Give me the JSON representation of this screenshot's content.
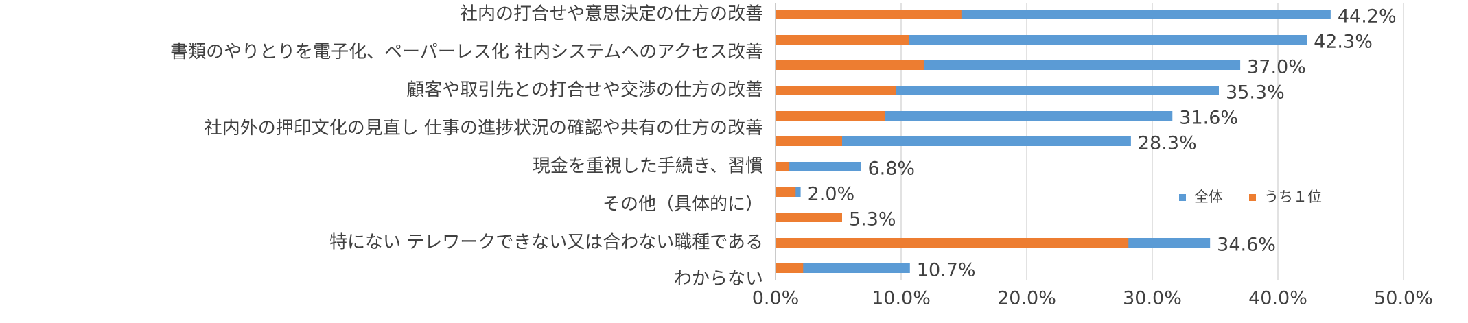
{
  "chart_data": {
    "type": "barh",
    "categories": [
      "社内の打合せや意思決定の仕方の改善",
      "書類のやりとりを電子化、ペーパーレス化 社内システムへのアクセス改善",
      null,
      "顧客や取引先との打合せや交渉の仕方の改善",
      "社内外の押印文化の見直し 仕事の進捗状況の確認や共有の仕方の改善",
      null,
      "現金を重視した手続き、習慣",
      "その他（具体的に）",
      null,
      "特にない テレワークできない又は合わない職種である",
      "わからない"
    ],
    "series": [
      {
        "name": "全体",
        "color": "#5b9bd5",
        "values": [
          44.2,
          42.3,
          37.0,
          35.3,
          31.6,
          28.3,
          6.8,
          2.0,
          5.3,
          34.6,
          10.7
        ],
        "value_labels": [
          "44.2%",
          "42.3%",
          "37.0%",
          "35.3%",
          "31.6%",
          "28.3%",
          "6.8%",
          "2.0%",
          "5.3%",
          "34.6%",
          "10.7%"
        ]
      },
      {
        "name": "うち１位",
        "color": "#ed7d31",
        "values": [
          14.8,
          10.6,
          11.8,
          9.6,
          8.7,
          5.3,
          1.1,
          1.6,
          5.3,
          28.1,
          2.2
        ]
      }
    ],
    "xlim": [
      0,
      50
    ],
    "xticks": [
      {
        "value": 0,
        "label": "0.0%"
      },
      {
        "value": 10,
        "label": "10.0%"
      },
      {
        "value": 20,
        "label": "20.0%"
      },
      {
        "value": 30,
        "label": "30.0%"
      },
      {
        "value": 40,
        "label": "40.0%"
      },
      {
        "value": 50,
        "label": "50.0%"
      }
    ],
    "grid": true,
    "legend": "right"
  }
}
